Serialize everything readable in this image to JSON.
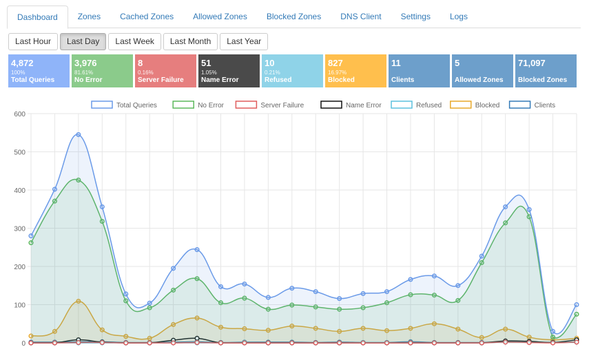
{
  "tabs": [
    "Dashboard",
    "Zones",
    "Cached Zones",
    "Allowed Zones",
    "Blocked Zones",
    "DNS Client",
    "Settings",
    "Logs"
  ],
  "active_tab": "Dashboard",
  "ranges": [
    "Last Hour",
    "Last Day",
    "Last Week",
    "Last Month",
    "Last Year"
  ],
  "active_range": "Last Day",
  "stats": [
    {
      "value": "4,872",
      "percent": "100%",
      "label": "Total Queries",
      "color": "#8fb4f9"
    },
    {
      "value": "3,976",
      "percent": "81.61%",
      "label": "No Error",
      "color": "#8bcb8b"
    },
    {
      "value": "8",
      "percent": "0.16%",
      "label": "Server Failure",
      "color": "#e67e7e"
    },
    {
      "value": "51",
      "percent": "1.05%",
      "label": "Name Error",
      "color": "#4a4a4a"
    },
    {
      "value": "10",
      "percent": "0.21%",
      "label": "Refused",
      "color": "#8fd3e8"
    },
    {
      "value": "827",
      "percent": "16.97%",
      "label": "Blocked",
      "color": "#ffbf4d"
    },
    {
      "value": "11",
      "percent": "",
      "label": "Clients",
      "color": "#6d9fcb"
    },
    {
      "value": "5",
      "percent": "",
      "label": "Allowed Zones",
      "color": "#6d9fcb"
    },
    {
      "value": "71,097",
      "percent": "",
      "label": "Blocked Zones",
      "color": "#6d9fcb"
    }
  ],
  "chart_data": {
    "type": "line",
    "ylim": [
      0,
      600
    ],
    "yticks": [
      "0",
      "100",
      "200",
      "300",
      "400",
      "500",
      "600"
    ],
    "grid": true,
    "legend": "top",
    "series": [
      {
        "name": "Total Queries",
        "color": "#6a9ae8",
        "fill": "rgba(106,154,232,0.12)",
        "values": [
          280,
          402,
          545,
          356,
          128,
          104,
          195,
          244,
          147,
          154,
          119,
          143,
          134,
          116,
          129,
          134,
          166,
          175,
          150,
          227,
          356,
          349,
          30,
          100
        ]
      },
      {
        "name": "No Error",
        "color": "#5cb85c",
        "fill": "rgba(92,184,92,0.12)",
        "values": [
          262,
          371,
          426,
          318,
          110,
          92,
          138,
          168,
          105,
          117,
          88,
          99,
          94,
          88,
          92,
          105,
          126,
          125,
          111,
          210,
          314,
          330,
          15,
          75
        ]
      },
      {
        "name": "Server Failure",
        "color": "#e05c5c",
        "values": [
          0,
          0,
          1,
          1,
          0,
          0,
          0,
          1,
          0,
          0,
          0,
          0,
          0,
          0,
          0,
          0,
          0,
          0,
          0,
          0,
          2,
          1,
          0,
          2
        ]
      },
      {
        "name": "Name Error",
        "color": "#111111",
        "values": [
          0,
          0,
          8,
          2,
          0,
          0,
          7,
          12,
          0,
          0,
          0,
          0,
          0,
          0,
          0,
          0,
          0,
          0,
          0,
          0,
          5,
          4,
          1,
          8
        ]
      },
      {
        "name": "Refused",
        "color": "#5bc0de",
        "values": [
          0,
          0,
          0,
          0,
          0,
          0,
          0,
          0,
          0,
          1,
          0,
          0,
          0,
          0,
          1,
          1,
          0,
          0,
          0,
          0,
          2,
          2,
          1,
          2
        ]
      },
      {
        "name": "Blocked",
        "color": "#e8a82a",
        "fill": "rgba(232,168,42,0.12)",
        "values": [
          18,
          30,
          109,
          34,
          17,
          12,
          48,
          65,
          41,
          37,
          33,
          44,
          38,
          30,
          38,
          32,
          38,
          50,
          36,
          14,
          36,
          15,
          8,
          12
        ]
      },
      {
        "name": "Clients",
        "color": "#337ab7",
        "values": [
          2,
          2,
          3,
          3,
          1,
          1,
          2,
          3,
          1,
          2,
          2,
          2,
          1,
          2,
          1,
          1,
          3,
          1,
          1,
          1,
          3,
          3,
          1,
          2
        ]
      }
    ]
  }
}
